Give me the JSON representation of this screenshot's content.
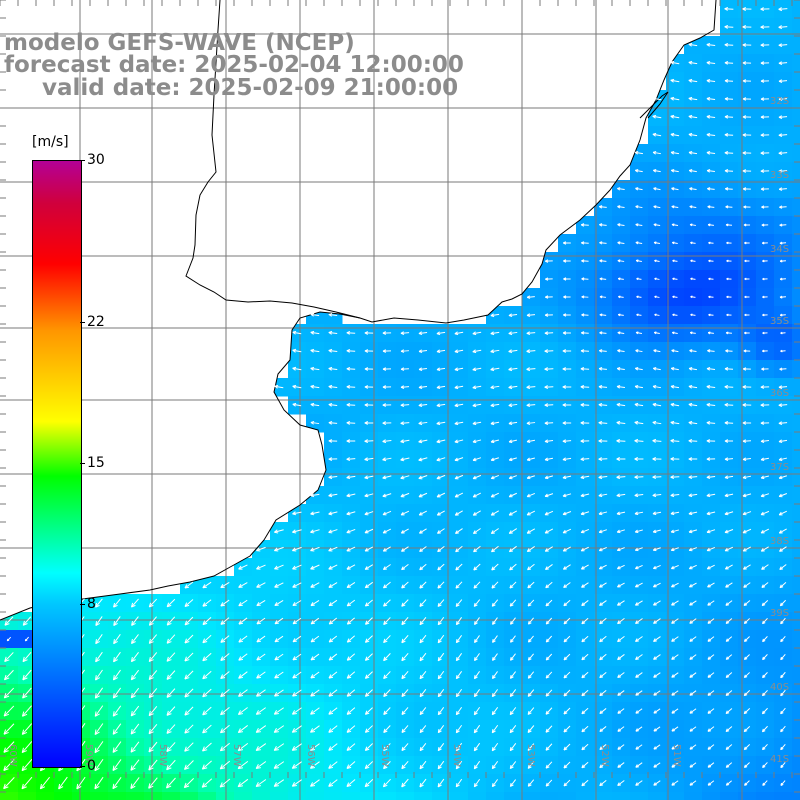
{
  "title": {
    "line1": "modelo GEFS-WAVE (NCEP)",
    "line2": "forecast date: 2025-02-04 12:00:00",
    "line3": "valid date: 2025-02-09 21:00:00"
  },
  "colorbar": {
    "unit": "[m/s]",
    "min": 0,
    "max": 30,
    "ticks": [
      "30",
      "22",
      "15",
      "8",
      "0"
    ],
    "tick_values": [
      30,
      22,
      15,
      8,
      0
    ],
    "colors": [
      "#0000ff",
      "#00c8ff",
      "#00ffff",
      "#00ff00",
      "#ffff00",
      "#ff9600",
      "#ff0000",
      "#b40096"
    ]
  },
  "lat_labels": [
    "32S",
    "33S",
    "34S",
    "35S",
    "36S",
    "37S",
    "38S",
    "39S",
    "40S",
    "41S"
  ],
  "lon_labels": [
    "60W",
    "59W",
    "58W",
    "57W",
    "56W",
    "55W",
    "54W",
    "53W",
    "52W",
    "51W"
  ],
  "map": {
    "background_color": "#ffffff",
    "grid_color": "#7a7a7a",
    "coast_color": "#000000",
    "arrow_color": "#ffffff"
  }
}
